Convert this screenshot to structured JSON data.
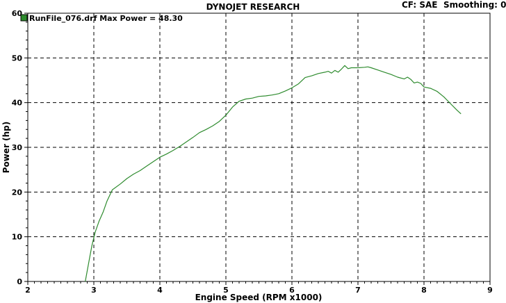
{
  "header": {
    "title": "DYNOJET RESEARCH",
    "cf_label": "CF: SAE",
    "smoothing_label": "Smoothing: 0"
  },
  "legend": {
    "label": "RunFile_076.drf Max Power = 48.30",
    "color": "#2e8b2e"
  },
  "chart_data": {
    "type": "line",
    "title": "DYNOJET RESEARCH",
    "xlabel": "Engine Speed (RPM x1000)",
    "ylabel": "Power (hp)",
    "xlim": [
      2,
      9
    ],
    "ylim": [
      0,
      60
    ],
    "x_ticks": [
      "2",
      "3",
      "4",
      "5",
      "6",
      "7",
      "8",
      "9"
    ],
    "y_ticks": [
      "0",
      "10",
      "20",
      "30",
      "40",
      "50",
      "60"
    ],
    "grid": true,
    "legend_position": "top-left",
    "series": [
      {
        "name": "RunFile_076.drf",
        "color": "#2e8b2e",
        "points": [
          [
            2.87,
            0.0
          ],
          [
            2.92,
            4.0
          ],
          [
            2.97,
            8.0
          ],
          [
            3.02,
            11.0
          ],
          [
            3.08,
            13.5
          ],
          [
            3.14,
            15.5
          ],
          [
            3.2,
            18.0
          ],
          [
            3.28,
            20.5
          ],
          [
            3.4,
            21.8
          ],
          [
            3.5,
            23.0
          ],
          [
            3.6,
            24.0
          ],
          [
            3.7,
            24.8
          ],
          [
            3.8,
            25.8
          ],
          [
            3.9,
            26.8
          ],
          [
            4.0,
            27.8
          ],
          [
            4.1,
            28.5
          ],
          [
            4.2,
            29.3
          ],
          [
            4.3,
            30.2
          ],
          [
            4.4,
            31.2
          ],
          [
            4.5,
            32.2
          ],
          [
            4.6,
            33.3
          ],
          [
            4.7,
            34.0
          ],
          [
            4.8,
            34.8
          ],
          [
            4.9,
            35.8
          ],
          [
            5.0,
            37.2
          ],
          [
            5.1,
            39.0
          ],
          [
            5.2,
            40.3
          ],
          [
            5.3,
            40.8
          ],
          [
            5.4,
            41.0
          ],
          [
            5.5,
            41.4
          ],
          [
            5.6,
            41.5
          ],
          [
            5.7,
            41.7
          ],
          [
            5.8,
            42.0
          ],
          [
            5.9,
            42.6
          ],
          [
            6.0,
            43.3
          ],
          [
            6.1,
            44.2
          ],
          [
            6.2,
            45.6
          ],
          [
            6.3,
            46.0
          ],
          [
            6.4,
            46.5
          ],
          [
            6.5,
            46.8
          ],
          [
            6.55,
            47.0
          ],
          [
            6.6,
            46.6
          ],
          [
            6.65,
            47.2
          ],
          [
            6.7,
            46.8
          ],
          [
            6.75,
            47.5
          ],
          [
            6.8,
            48.3
          ],
          [
            6.85,
            47.6
          ],
          [
            6.9,
            47.8
          ],
          [
            7.0,
            47.8
          ],
          [
            7.1,
            47.9
          ],
          [
            7.15,
            48.0
          ],
          [
            7.2,
            47.8
          ],
          [
            7.3,
            47.3
          ],
          [
            7.4,
            46.8
          ],
          [
            7.5,
            46.3
          ],
          [
            7.6,
            45.7
          ],
          [
            7.7,
            45.3
          ],
          [
            7.75,
            45.7
          ],
          [
            7.8,
            45.2
          ],
          [
            7.85,
            44.4
          ],
          [
            7.9,
            44.6
          ],
          [
            7.95,
            44.3
          ],
          [
            8.0,
            43.5
          ],
          [
            8.1,
            43.2
          ],
          [
            8.2,
            42.5
          ],
          [
            8.3,
            41.3
          ],
          [
            8.4,
            39.8
          ],
          [
            8.5,
            38.3
          ],
          [
            8.56,
            37.5
          ]
        ]
      }
    ]
  }
}
